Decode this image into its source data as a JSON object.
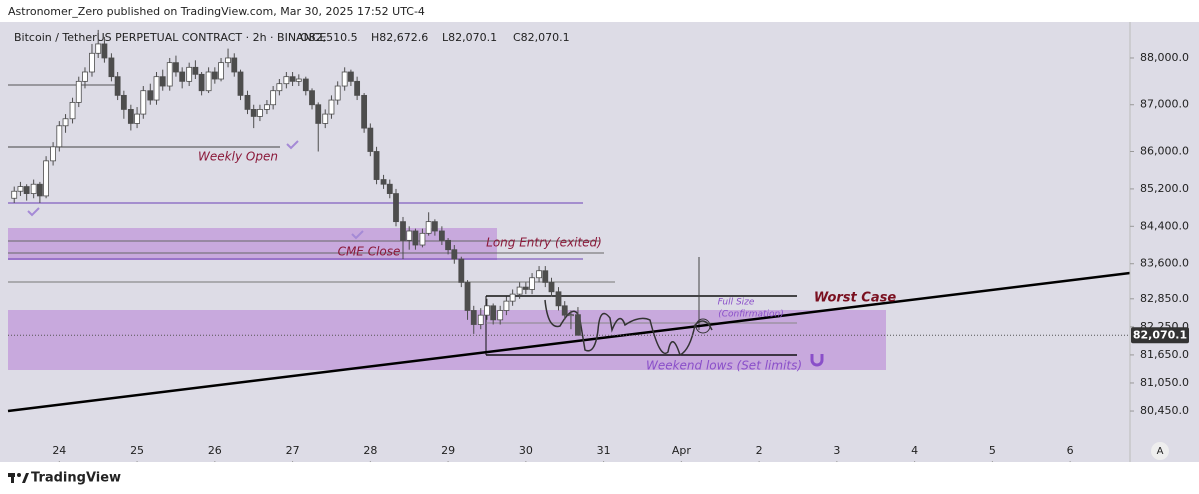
{
  "header": {
    "publisher": "Astronomer_Zero published on TradingView.com, Mar 30, 2025 17:52 UTC-4",
    "brand": "TradingView",
    "auto_button": "A"
  },
  "chart_data": {
    "type": "candlestick",
    "title": "Bitcoin / TetherUS PERPETUAL CONTRACT · 2h · BINANCE",
    "legend_values": [
      "O82,510.5",
      "H82,672.6",
      "L82,070.1",
      "C82,070.1"
    ],
    "up_color": "#ffffff",
    "down_color": "#4d4d4d",
    "wick_color": "#4d4d4d",
    "x": [
      23.42,
      23.5,
      23.58,
      23.67,
      23.75,
      23.83,
      23.92,
      24,
      24.08,
      24.17,
      24.25,
      24.33,
      24.42,
      24.5,
      24.58,
      24.67,
      24.75,
      24.83,
      24.92,
      25,
      25.08,
      25.17,
      25.25,
      25.33,
      25.42,
      25.5,
      25.58,
      25.67,
      25.75,
      25.83,
      25.92,
      26,
      26.08,
      26.17,
      26.25,
      26.33,
      26.42,
      26.5,
      26.58,
      26.67,
      26.75,
      26.83,
      26.92,
      27,
      27.08,
      27.17,
      27.25,
      27.33,
      27.42,
      27.5,
      27.58,
      27.67,
      27.75,
      27.83,
      27.92,
      28,
      28.08,
      28.17,
      28.25,
      28.33,
      28.42,
      28.5,
      28.58,
      28.67,
      28.75,
      28.83,
      28.92,
      29,
      29.08,
      29.17,
      29.25,
      29.33,
      29.42,
      29.5,
      29.58,
      29.67,
      29.75,
      29.83,
      29.92,
      30,
      30.08,
      30.17,
      30.25,
      30.33,
      30.42,
      30.5,
      30.58,
      30.67
    ],
    "ohlc": [
      [
        85000,
        85250,
        84900,
        85150
      ],
      [
        85150,
        85350,
        85050,
        85250
      ],
      [
        85250,
        85300,
        84950,
        85100
      ],
      [
        85100,
        85400,
        85000,
        85300
      ],
      [
        85300,
        85350,
        84900,
        85050
      ],
      [
        85050,
        85900,
        85000,
        85800
      ],
      [
        85800,
        86200,
        85700,
        86100
      ],
      [
        86100,
        86650,
        86000,
        86550
      ],
      [
        86550,
        86800,
        86400,
        86700
      ],
      [
        86700,
        87150,
        86600,
        87050
      ],
      [
        87050,
        87600,
        86950,
        87500
      ],
      [
        87500,
        87800,
        87350,
        87700
      ],
      [
        87700,
        88300,
        87600,
        88100
      ],
      [
        88100,
        88600,
        88000,
        88300
      ],
      [
        88300,
        88450,
        87900,
        88000
      ],
      [
        88000,
        88100,
        87500,
        87600
      ],
      [
        87600,
        87700,
        87100,
        87200
      ],
      [
        87200,
        87300,
        86700,
        86900
      ],
      [
        86900,
        87000,
        86450,
        86600
      ],
      [
        86600,
        86950,
        86500,
        86800
      ],
      [
        86800,
        87400,
        86700,
        87300
      ],
      [
        87300,
        87450,
        87000,
        87100
      ],
      [
        87100,
        87700,
        87000,
        87600
      ],
      [
        87600,
        87750,
        87300,
        87400
      ],
      [
        87400,
        88000,
        87300,
        87900
      ],
      [
        87900,
        88050,
        87600,
        87700
      ],
      [
        87700,
        87800,
        87350,
        87500
      ],
      [
        87500,
        87900,
        87400,
        87800
      ],
      [
        87800,
        87950,
        87550,
        87650
      ],
      [
        87650,
        87700,
        87200,
        87300
      ],
      [
        87300,
        87800,
        87250,
        87700
      ],
      [
        87700,
        87800,
        87450,
        87550
      ],
      [
        87550,
        88000,
        87500,
        87900
      ],
      [
        87900,
        88200,
        87800,
        88000
      ],
      [
        88000,
        88100,
        87600,
        87700
      ],
      [
        87700,
        87750,
        87100,
        87200
      ],
      [
        87200,
        87300,
        86800,
        86900
      ],
      [
        86900,
        87000,
        86500,
        86750
      ],
      [
        86750,
        87000,
        86650,
        86900
      ],
      [
        86900,
        87100,
        86800,
        87000
      ],
      [
        87000,
        87400,
        86900,
        87300
      ],
      [
        87300,
        87550,
        87200,
        87450
      ],
      [
        87450,
        87700,
        87350,
        87600
      ],
      [
        87600,
        87700,
        87400,
        87500
      ],
      [
        87500,
        87650,
        87400,
        87550
      ],
      [
        87550,
        87600,
        87200,
        87300
      ],
      [
        87300,
        87350,
        86900,
        87000
      ],
      [
        87000,
        87050,
        86000,
        86600
      ],
      [
        86600,
        86900,
        86500,
        86800
      ],
      [
        86800,
        87200,
        86700,
        87100
      ],
      [
        87100,
        87500,
        87000,
        87400
      ],
      [
        87400,
        87800,
        87300,
        87700
      ],
      [
        87700,
        87750,
        87400,
        87500
      ],
      [
        87500,
        87600,
        87100,
        87200
      ],
      [
        87200,
        87250,
        86400,
        86500
      ],
      [
        86500,
        86600,
        85900,
        86000
      ],
      [
        86000,
        86100,
        85300,
        85400
      ],
      [
        85400,
        85500,
        85200,
        85300
      ],
      [
        85300,
        85400,
        85000,
        85100
      ],
      [
        85100,
        85200,
        84400,
        84500
      ],
      [
        84500,
        84600,
        83700,
        84100
      ],
      [
        84100,
        84400,
        83900,
        84300
      ],
      [
        84300,
        84350,
        83900,
        84000
      ],
      [
        84000,
        84350,
        83950,
        84250
      ],
      [
        84250,
        84700,
        84200,
        84500
      ],
      [
        84500,
        84550,
        84200,
        84300
      ],
      [
        84300,
        84400,
        84000,
        84100
      ],
      [
        84100,
        84150,
        83800,
        83900
      ],
      [
        83900,
        84000,
        83600,
        83700
      ],
      [
        83700,
        83750,
        83100,
        83200
      ],
      [
        83200,
        83250,
        82400,
        82600
      ],
      [
        82600,
        82700,
        82100,
        82300
      ],
      [
        82300,
        82650,
        82200,
        82500
      ],
      [
        82500,
        82850,
        82400,
        82700
      ],
      [
        82700,
        82750,
        82300,
        82400
      ],
      [
        82400,
        82700,
        82300,
        82600
      ],
      [
        82600,
        82900,
        82500,
        82800
      ],
      [
        82800,
        83050,
        82700,
        82950
      ],
      [
        82950,
        83200,
        82850,
        83100
      ],
      [
        83100,
        83200,
        82950,
        83050
      ],
      [
        83050,
        83400,
        82950,
        83300
      ],
      [
        83300,
        83550,
        83200,
        83450
      ],
      [
        83450,
        83550,
        83100,
        83200
      ],
      [
        83200,
        83300,
        82900,
        83000
      ],
      [
        83000,
        83100,
        82600,
        82700
      ],
      [
        82700,
        82800,
        82400,
        82500
      ],
      [
        82500,
        82600,
        82200,
        82510.5
      ],
      [
        82510.5,
        82672.6,
        82070.1,
        82070.1
      ]
    ],
    "last_price": 82070.1,
    "last_price_label": "82,070.1",
    "xlim": [
      23.34,
      37.77
    ],
    "xticks": [
      24,
      25,
      26,
      27,
      28,
      29,
      30,
      31,
      {
        "value": 32,
        "label": "Apr"
      },
      {
        "value": 33,
        "label": "2"
      },
      {
        "value": 34,
        "label": "3"
      },
      {
        "value": 35,
        "label": "4"
      },
      {
        "value": 36,
        "label": "5"
      },
      {
        "value": 37,
        "label": "6"
      }
    ],
    "ylim": [
      79360,
      88705
    ],
    "yticks": [
      {
        "value": 88000,
        "label": "88,000.0"
      },
      {
        "value": 87000,
        "label": "87,000.0"
      },
      {
        "value": 86000,
        "label": "86,000.0"
      },
      {
        "value": 85200,
        "label": "85,200.0"
      },
      {
        "value": 84400,
        "label": "84,400.0"
      },
      {
        "value": 83600,
        "label": "83,600.0"
      },
      {
        "value": 82850,
        "label": "82,850.0"
      },
      {
        "value": 82250,
        "label": "82,250.0"
      },
      {
        "value": 81650,
        "label": "81,650.0"
      },
      {
        "value": 81050,
        "label": "81,050.0"
      },
      {
        "value": 80450,
        "label": "80,450.0"
      }
    ],
    "annotations": [
      "Weekly Open",
      "CME Close",
      "Long Entry (exited)",
      "Full Size",
      "(Confirmation)",
      "Worst Case",
      "Weekend lows (Set limits)"
    ]
  }
}
